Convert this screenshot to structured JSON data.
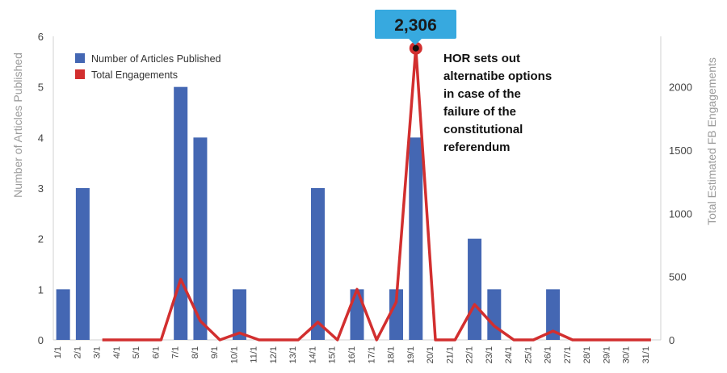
{
  "chart_data": {
    "type": "bar",
    "categories": [
      "1/1",
      "2/1",
      "3/1",
      "4/1",
      "5/1",
      "6/1",
      "7/1",
      "8/1",
      "9/1",
      "10/1",
      "11/1",
      "12/1",
      "13/1",
      "14/1",
      "15/1",
      "16/1",
      "17/1",
      "18/1",
      "19/1",
      "20/1",
      "21/1",
      "22/1",
      "23/1",
      "24/1",
      "25/1",
      "26/1",
      "27/1",
      "28/1",
      "29/1",
      "30/1",
      "31/1"
    ],
    "series": [
      {
        "name": "Number of Articles Published",
        "type": "bar",
        "axis": "left",
        "color": "#4467b3",
        "values": [
          1,
          3,
          0,
          0,
          0,
          0,
          5,
          4,
          0,
          1,
          0,
          0,
          0,
          3,
          0,
          1,
          0,
          1,
          4,
          0,
          0,
          2,
          1,
          0,
          0,
          1,
          0,
          0,
          0,
          0,
          0
        ]
      },
      {
        "name": "Total Engagements",
        "type": "line",
        "axis": "right",
        "color": "#d22f2f",
        "values": [
          null,
          null,
          0,
          0,
          0,
          0,
          480,
          150,
          0,
          55,
          0,
          0,
          0,
          140,
          0,
          400,
          0,
          300,
          2306,
          0,
          0,
          280,
          110,
          0,
          0,
          70,
          0,
          0,
          0,
          0,
          0
        ]
      }
    ],
    "ylabel": "Number of Articles Published",
    "ylabel_right": "Total Estimated FB Engagements",
    "ylim": [
      0,
      6
    ],
    "ylim_right": [
      0,
      2400
    ],
    "yticks": [
      0,
      1,
      2,
      3,
      4,
      5,
      6
    ],
    "yticks_right": [
      0,
      500,
      1000,
      1500,
      2000
    ],
    "legend_position": "top-left",
    "grid": false,
    "callout_value": "2,306",
    "annotation": [
      "HOR sets out",
      "alternatibe options",
      "in case of the",
      "failure of the",
      "constitutional",
      "referendum"
    ]
  }
}
